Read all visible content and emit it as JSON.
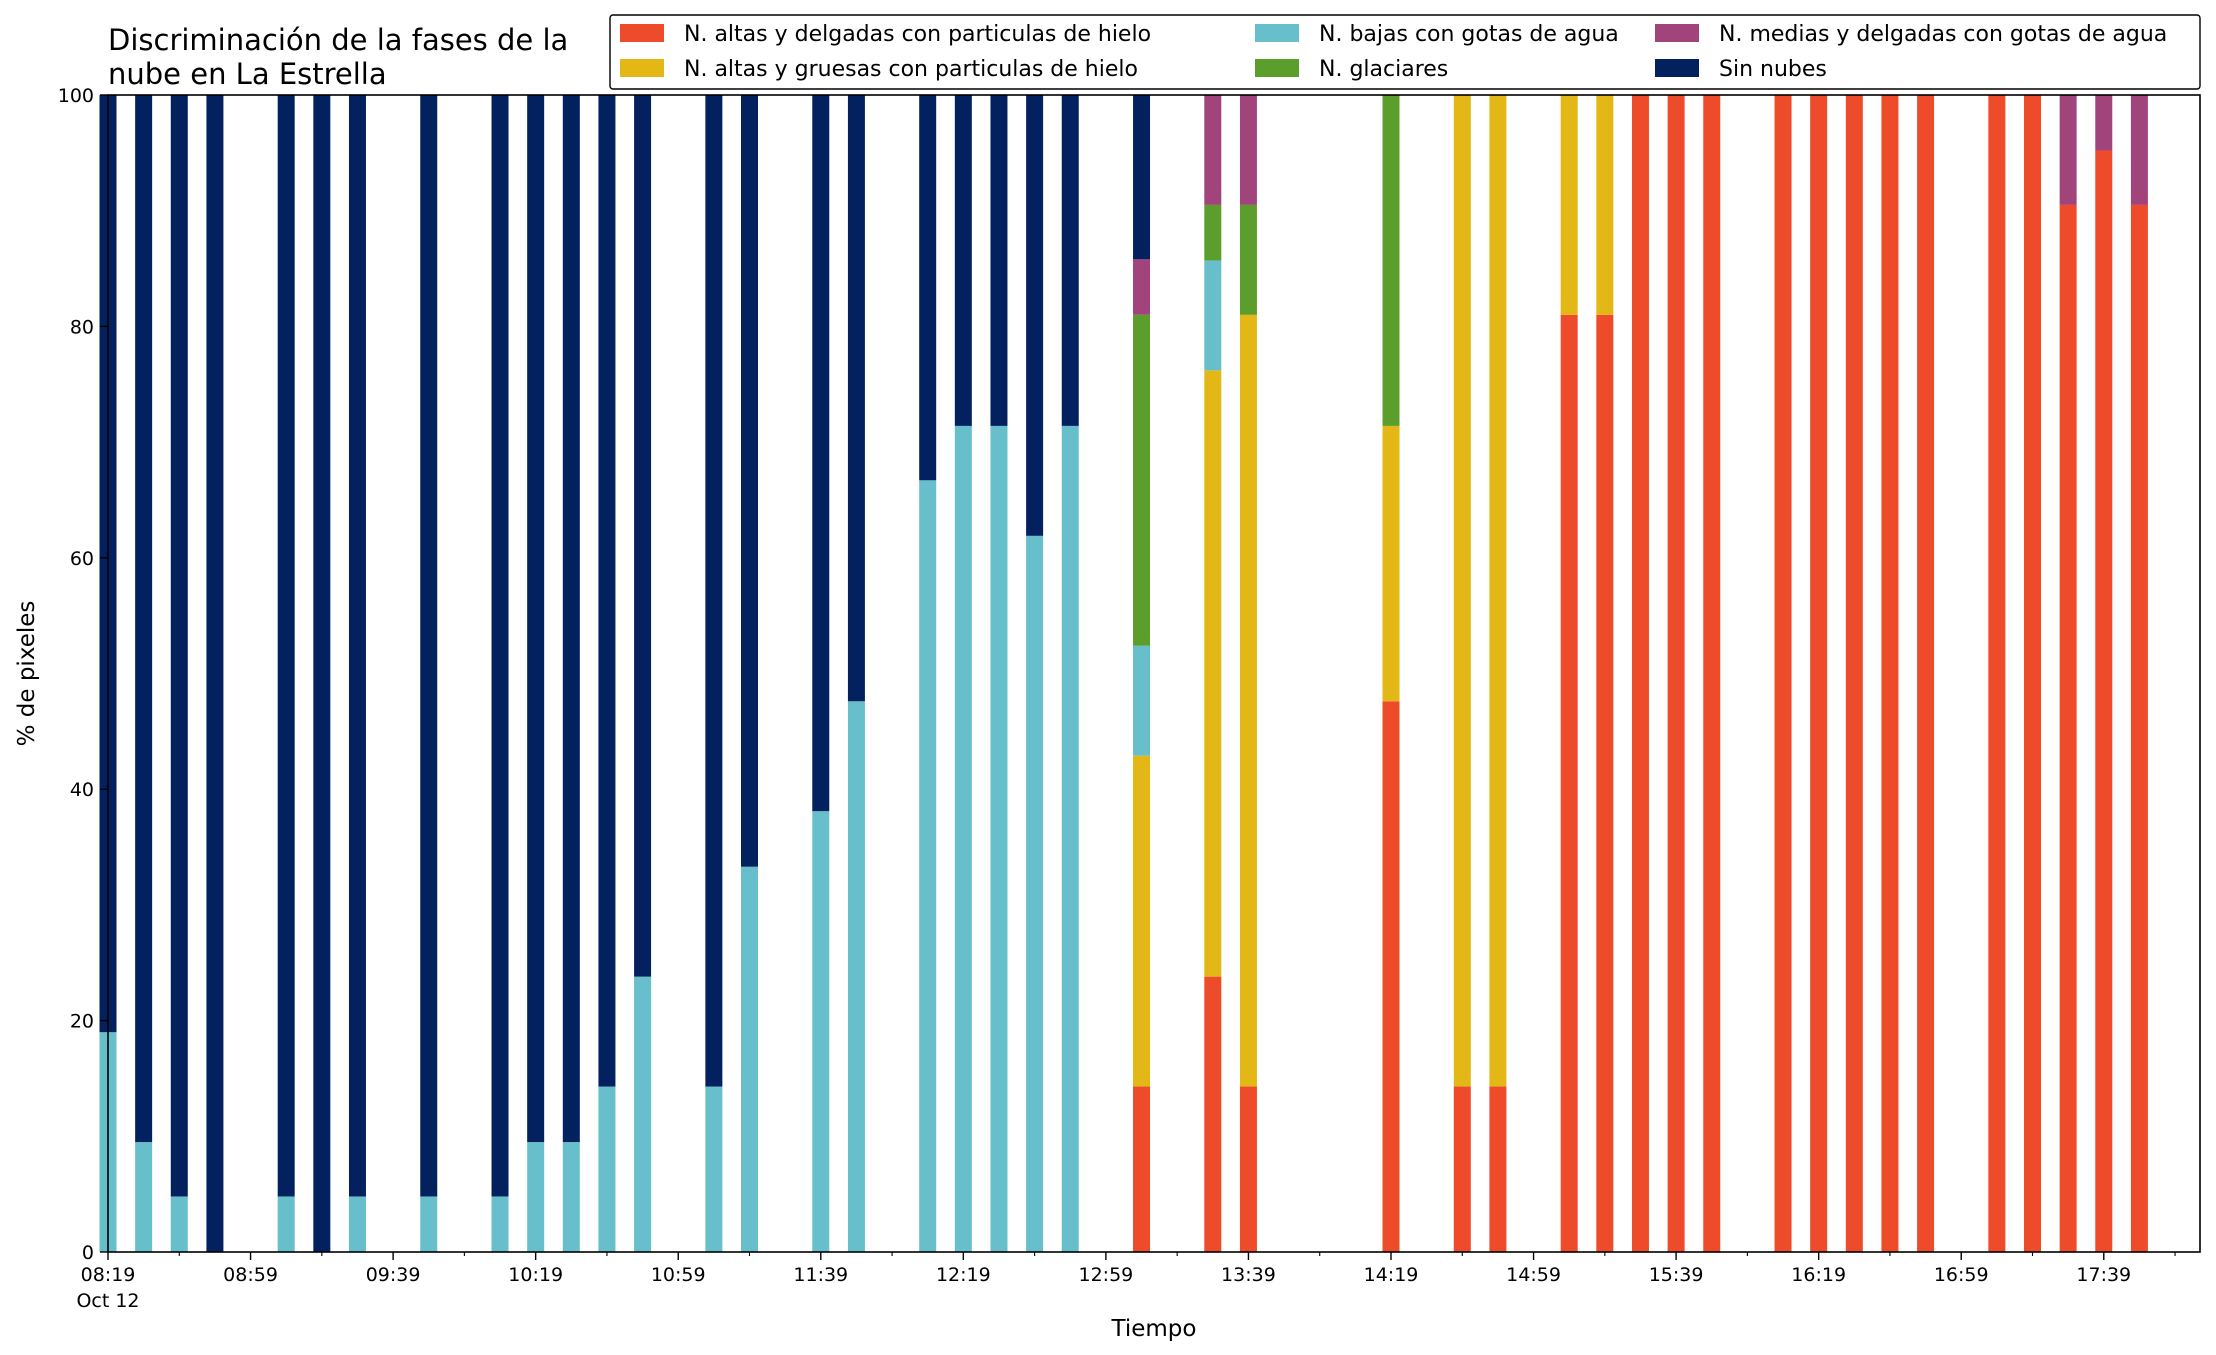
{
  "chart_data": {
    "type": "bar",
    "stacked": true,
    "title": "Discriminación de la fases de la\nnube en La Estrella",
    "xlabel": "Tiempo",
    "ylabel": "% de pixeles",
    "ylim": [
      0,
      100
    ],
    "yticks": [
      0,
      20,
      40,
      60,
      80,
      100
    ],
    "grid": false,
    "legend_position": "top-right",
    "x_tick_labels": [
      "08:19",
      "08:59",
      "09:39",
      "10:19",
      "10:59",
      "11:39",
      "12:19",
      "12:59",
      "13:39",
      "14:19",
      "14:59",
      "15:39",
      "16:19",
      "16:59",
      "17:39"
    ],
    "x_date_label": "Oct 12",
    "x_start": "08:19",
    "x_end": "18:06",
    "x_minor_ticks": [
      "08:39",
      "09:19",
      "09:59",
      "10:39",
      "11:19",
      "11:59",
      "12:39",
      "13:19",
      "13:59",
      "14:39",
      "15:19",
      "15:59",
      "16:39",
      "17:19",
      "17:59"
    ],
    "series": [
      {
        "name": "N. altas y delgadas con particulas de hielo",
        "color": "#ee4b2b",
        "key": "alt_del"
      },
      {
        "name": "N. altas y gruesas con particulas de hielo",
        "color": "#e3b716",
        "key": "alt_gru"
      },
      {
        "name": "N. bajas con gotas de agua",
        "color": "#67bfcb",
        "key": "baj"
      },
      {
        "name": "N. glaciares",
        "color": "#5b9e2c",
        "key": "gla"
      },
      {
        "name": "N. medias y delgadas con gotas de agua",
        "color": "#a2447c",
        "key": "med"
      },
      {
        "name": "Sin nubes",
        "color": "#04215f",
        "key": "sin"
      }
    ],
    "bars": [
      {
        "time": "08:19",
        "alt_del": 0,
        "alt_gru": 0,
        "baj": 19,
        "gla": 0,
        "med": 0,
        "sin": 81
      },
      {
        "time": "08:29",
        "alt_del": 0,
        "alt_gru": 0,
        "baj": 9.5,
        "gla": 0,
        "med": 0,
        "sin": 90.5
      },
      {
        "time": "08:39",
        "alt_del": 0,
        "alt_gru": 0,
        "baj": 4.8,
        "gla": 0,
        "med": 0,
        "sin": 95.2
      },
      {
        "time": "08:49",
        "alt_del": 0,
        "alt_gru": 0,
        "baj": 0,
        "gla": 0,
        "med": 0,
        "sin": 100
      },
      {
        "time": "09:09",
        "alt_del": 0,
        "alt_gru": 0,
        "baj": 4.8,
        "gla": 0,
        "med": 0,
        "sin": 95.2
      },
      {
        "time": "09:19",
        "alt_del": 0,
        "alt_gru": 0,
        "baj": 0,
        "gla": 0,
        "med": 0,
        "sin": 100
      },
      {
        "time": "09:29",
        "alt_del": 0,
        "alt_gru": 0,
        "baj": 4.8,
        "gla": 0,
        "med": 0,
        "sin": 95.2
      },
      {
        "time": "09:49",
        "alt_del": 0,
        "alt_gru": 0,
        "baj": 4.8,
        "gla": 0,
        "med": 0,
        "sin": 95.2
      },
      {
        "time": "10:09",
        "alt_del": 0,
        "alt_gru": 0,
        "baj": 4.8,
        "gla": 0,
        "med": 0,
        "sin": 95.2
      },
      {
        "time": "10:19",
        "alt_del": 0,
        "alt_gru": 0,
        "baj": 9.5,
        "gla": 0,
        "med": 0,
        "sin": 90.5
      },
      {
        "time": "10:29",
        "alt_del": 0,
        "alt_gru": 0,
        "baj": 9.5,
        "gla": 0,
        "med": 0,
        "sin": 90.5
      },
      {
        "time": "10:39",
        "alt_del": 0,
        "alt_gru": 0,
        "baj": 14.3,
        "gla": 0,
        "med": 0,
        "sin": 85.7
      },
      {
        "time": "10:49",
        "alt_del": 0,
        "alt_gru": 0,
        "baj": 23.8,
        "gla": 0,
        "med": 0,
        "sin": 76.2
      },
      {
        "time": "11:09",
        "alt_del": 0,
        "alt_gru": 0,
        "baj": 14.3,
        "gla": 0,
        "med": 0,
        "sin": 85.7
      },
      {
        "time": "11:19",
        "alt_del": 0,
        "alt_gru": 0,
        "baj": 33.3,
        "gla": 0,
        "med": 0,
        "sin": 66.7
      },
      {
        "time": "11:39",
        "alt_del": 0,
        "alt_gru": 0,
        "baj": 38.1,
        "gla": 0,
        "med": 0,
        "sin": 61.9
      },
      {
        "time": "11:49",
        "alt_del": 0,
        "alt_gru": 0,
        "baj": 47.6,
        "gla": 0,
        "med": 0,
        "sin": 52.4
      },
      {
        "time": "12:09",
        "alt_del": 0,
        "alt_gru": 0,
        "baj": 66.7,
        "gla": 0,
        "med": 0,
        "sin": 33.3
      },
      {
        "time": "12:19",
        "alt_del": 0,
        "alt_gru": 0,
        "baj": 71.4,
        "gla": 0,
        "med": 0,
        "sin": 28.6
      },
      {
        "time": "12:29",
        "alt_del": 0,
        "alt_gru": 0,
        "baj": 71.4,
        "gla": 0,
        "med": 0,
        "sin": 28.6
      },
      {
        "time": "12:39",
        "alt_del": 0,
        "alt_gru": 0,
        "baj": 61.9,
        "gla": 0,
        "med": 0,
        "sin": 38.1
      },
      {
        "time": "12:49",
        "alt_del": 0,
        "alt_gru": 0,
        "baj": 71.4,
        "gla": 0,
        "med": 0,
        "sin": 28.6
      },
      {
        "time": "13:09",
        "alt_del": 14.3,
        "alt_gru": 28.6,
        "baj": 9.5,
        "gla": 28.6,
        "med": 4.8,
        "sin": 14.2
      },
      {
        "time": "13:29",
        "alt_del": 23.8,
        "alt_gru": 52.4,
        "baj": 9.5,
        "gla": 4.8,
        "med": 9.5,
        "sin": 0
      },
      {
        "time": "13:39",
        "alt_del": 14.3,
        "alt_gru": 66.7,
        "baj": 0,
        "gla": 9.5,
        "med": 9.5,
        "sin": 0
      },
      {
        "time": "14:19",
        "alt_del": 47.6,
        "alt_gru": 23.8,
        "baj": 0,
        "gla": 28.6,
        "med": 0,
        "sin": 0
      },
      {
        "time": "14:39",
        "alt_del": 14.3,
        "alt_gru": 85.7,
        "baj": 0,
        "gla": 0,
        "med": 0,
        "sin": 0
      },
      {
        "time": "14:49",
        "alt_del": 14.3,
        "alt_gru": 85.7,
        "baj": 0,
        "gla": 0,
        "med": 0,
        "sin": 0
      },
      {
        "time": "15:09",
        "alt_del": 81,
        "alt_gru": 19,
        "baj": 0,
        "gla": 0,
        "med": 0,
        "sin": 0
      },
      {
        "time": "15:19",
        "alt_del": 81,
        "alt_gru": 19,
        "baj": 0,
        "gla": 0,
        "med": 0,
        "sin": 0
      },
      {
        "time": "15:29",
        "alt_del": 100,
        "alt_gru": 0,
        "baj": 0,
        "gla": 0,
        "med": 0,
        "sin": 0
      },
      {
        "time": "15:39",
        "alt_del": 100,
        "alt_gru": 0,
        "baj": 0,
        "gla": 0,
        "med": 0,
        "sin": 0
      },
      {
        "time": "15:49",
        "alt_del": 100,
        "alt_gru": 0,
        "baj": 0,
        "gla": 0,
        "med": 0,
        "sin": 0
      },
      {
        "time": "16:09",
        "alt_del": 100,
        "alt_gru": 0,
        "baj": 0,
        "gla": 0,
        "med": 0,
        "sin": 0
      },
      {
        "time": "16:19",
        "alt_del": 100,
        "alt_gru": 0,
        "baj": 0,
        "gla": 0,
        "med": 0,
        "sin": 0
      },
      {
        "time": "16:29",
        "alt_del": 100,
        "alt_gru": 0,
        "baj": 0,
        "gla": 0,
        "med": 0,
        "sin": 0
      },
      {
        "time": "16:39",
        "alt_del": 100,
        "alt_gru": 0,
        "baj": 0,
        "gla": 0,
        "med": 0,
        "sin": 0
      },
      {
        "time": "16:49",
        "alt_del": 100,
        "alt_gru": 0,
        "baj": 0,
        "gla": 0,
        "med": 0,
        "sin": 0
      },
      {
        "time": "17:09",
        "alt_del": 100,
        "alt_gru": 0,
        "baj": 0,
        "gla": 0,
        "med": 0,
        "sin": 0
      },
      {
        "time": "17:19",
        "alt_del": 100,
        "alt_gru": 0,
        "baj": 0,
        "gla": 0,
        "med": 0,
        "sin": 0
      },
      {
        "time": "17:29",
        "alt_del": 90.5,
        "alt_gru": 0,
        "baj": 0,
        "gla": 0,
        "med": 9.5,
        "sin": 0
      },
      {
        "time": "17:39",
        "alt_del": 95.2,
        "alt_gru": 0,
        "baj": 0,
        "gla": 0,
        "med": 4.8,
        "sin": 0
      },
      {
        "time": "17:49",
        "alt_del": 90.5,
        "alt_gru": 0,
        "baj": 0,
        "gla": 0,
        "med": 9.5,
        "sin": 0
      }
    ]
  }
}
